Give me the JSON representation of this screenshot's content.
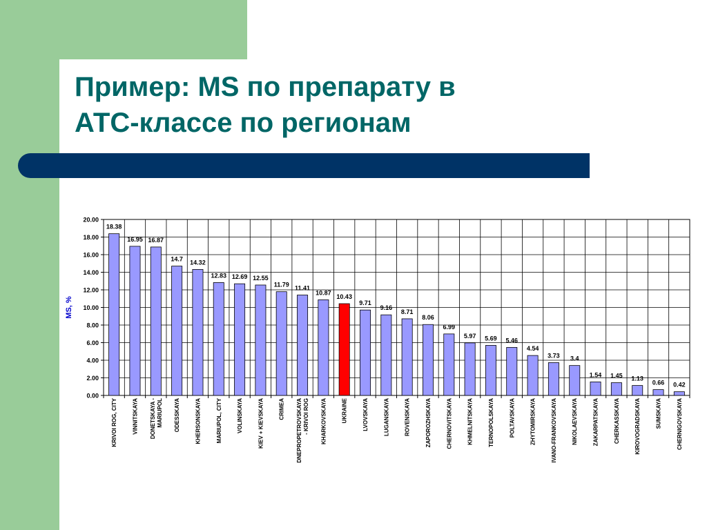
{
  "slide": {
    "title_line1": "Пример: MS по препарату в",
    "title_line2": "АТС-классе по регионам",
    "accent_green": "#99cc99",
    "accent_blue": "#003366",
    "title_color": "#006666"
  },
  "chart_data": {
    "type": "bar",
    "title": "",
    "xlabel": "",
    "ylabel": "MS, %",
    "ylim": [
      0,
      20
    ],
    "yticks": [
      "0.00",
      "2.00",
      "4.00",
      "6.00",
      "8.00",
      "10.00",
      "12.00",
      "14.00",
      "16.00",
      "18.00",
      "20.00"
    ],
    "grid": true,
    "bar_color": "#9999ff",
    "highlight_color": "#ff0000",
    "highlight_category": "UKRAINE",
    "categories": [
      "KRIVOI ROG, CITY",
      "VINNITSKAYA",
      "DONETSKAYA - MARIUPOL",
      "ODESSKAYA",
      "KHERSONSKAYA",
      "MARIUPOL, CITY",
      "VOLINSKAYA",
      "KIEV + KIEVSKAYA",
      "CRIMEA",
      "DNEPROPETROVSKAYA - KRIVOI ROG",
      "KHARKOVSKAYA",
      "UKRAINE",
      "LVOVSKAYA",
      "LUGANSKAYA",
      "ROVENSKAYA",
      "ZAPOROZHSKAYA",
      "CHERNOVITSKAYA",
      "KHMELNITSKAYA",
      "TERNOPOLSKAYA",
      "POLTAVSKAYA",
      "ZHYTOMIRSKAYA",
      "IVANO-FRANKOVSKAYA",
      "NIKOLAEVSKAYA",
      "ZAKARPATSKAYA",
      "CHERKASSKAYA",
      "KIROVOGRADSKAYA",
      "SUMSKAYA",
      "CHERNIGOVSKAYA"
    ],
    "category_lines": [
      [
        "KRIVOI ROG, CITY"
      ],
      [
        "VINNITSKAYA"
      ],
      [
        "DONETSKAYA -",
        "MARIUPOL"
      ],
      [
        "ODESSKAYA"
      ],
      [
        "KHERSONSKAYA"
      ],
      [
        "MARIUPOL, CITY"
      ],
      [
        "VOLINSKAYA"
      ],
      [
        "KIEV + KIEVSKAYA"
      ],
      [
        "CRIMEA"
      ],
      [
        "DNEPROPETROVSKAYA",
        "- KRIVOI ROG"
      ],
      [
        "KHARKOVSKAYA"
      ],
      [
        "UKRAINE"
      ],
      [
        "LVOVSKAYA"
      ],
      [
        "LUGANSKAYA"
      ],
      [
        "ROVENSKAYA"
      ],
      [
        "ZAPOROZHSKAYA"
      ],
      [
        "CHERNOVITSKAYA"
      ],
      [
        "KHMELNITSKAYA"
      ],
      [
        "TERNOPOLSKAYA"
      ],
      [
        "POLTAVSKAYA"
      ],
      [
        "ZHYTOMIRSKAYA"
      ],
      [
        "IVANO-FRANKOVSKAYA"
      ],
      [
        "NIKOLAEVSKAYA"
      ],
      [
        "ZAKARPATSKAYA"
      ],
      [
        "CHERKASSKAYA"
      ],
      [
        "KIROVOGRADSKAYA"
      ],
      [
        "SUMSKAYA"
      ],
      [
        "CHERNIGOVSKAYA"
      ]
    ],
    "values": [
      18.38,
      16.95,
      16.87,
      14.7,
      14.32,
      12.83,
      12.69,
      12.55,
      11.79,
      11.41,
      10.87,
      10.43,
      9.71,
      9.16,
      8.71,
      8.06,
      6.99,
      5.97,
      5.69,
      5.46,
      4.54,
      3.73,
      3.4,
      1.54,
      1.45,
      1.13,
      0.66,
      0.42
    ],
    "value_labels": [
      "18.38",
      "16.95",
      "16.87",
      "14.7",
      "14.32",
      "12.83",
      "12.69",
      "12.55",
      "11.79",
      "11.41",
      "10.87",
      "10.43",
      "9.71",
      "9.16",
      "8.71",
      "8.06",
      "6.99",
      "5.97",
      "5.69",
      "5.46",
      "4.54",
      "3.73",
      "3.4",
      "1.54",
      "1.45",
      "1.13",
      "0.66",
      "0.42"
    ]
  }
}
